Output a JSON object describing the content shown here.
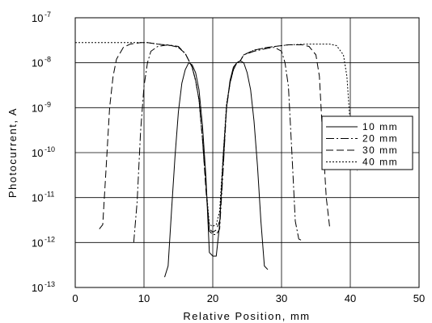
{
  "chart_data": {
    "type": "line",
    "title": "",
    "xlabel": "Relative Position, mm",
    "ylabel": "Photocurrent, A",
    "xlim": [
      0,
      50
    ],
    "ylim_log10": [
      -13,
      -7
    ],
    "y_scale": "log",
    "grid": true,
    "legend_position": "right",
    "x_ticks": [
      "0",
      "10",
      "20",
      "30",
      "40",
      "50"
    ],
    "y_ticks": [
      {
        "base": "10",
        "exp": "-7"
      },
      {
        "base": "10",
        "exp": "-8"
      },
      {
        "base": "10",
        "exp": "-9"
      },
      {
        "base": "10",
        "exp": "-10"
      },
      {
        "base": "10",
        "exp": "-11"
      },
      {
        "base": "10",
        "exp": "-12"
      },
      {
        "base": "10",
        "exp": "-13"
      }
    ],
    "series": [
      {
        "name": "10 mm",
        "dash": "none",
        "points": [
          [
            13.0,
            1.7e-13
          ],
          [
            13.5,
            3e-13
          ],
          [
            14.0,
            5e-12
          ],
          [
            14.5,
            8e-11
          ],
          [
            15.0,
            8e-10
          ],
          [
            15.5,
            3.5e-09
          ],
          [
            16.0,
            7e-09
          ],
          [
            16.5,
            1e-08
          ],
          [
            17.0,
            9e-09
          ],
          [
            17.5,
            6e-09
          ],
          [
            18.0,
            2.5e-09
          ],
          [
            18.5,
            4e-10
          ],
          [
            19.0,
            3e-11
          ],
          [
            19.5,
            6e-13
          ],
          [
            20.0,
            5e-13
          ],
          [
            20.5,
            5e-13
          ],
          [
            21.0,
            2.5e-12
          ],
          [
            21.5,
            8e-11
          ],
          [
            22.0,
            1e-09
          ],
          [
            22.5,
            4e-09
          ],
          [
            23.0,
            8e-09
          ],
          [
            23.5,
            1e-08
          ],
          [
            24.0,
            1.1e-08
          ],
          [
            24.5,
            1e-08
          ],
          [
            25.0,
            6e-09
          ],
          [
            25.5,
            2.5e-09
          ],
          [
            26.0,
            5e-10
          ],
          [
            26.5,
            5e-11
          ],
          [
            27.0,
            3e-12
          ],
          [
            27.5,
            3e-13
          ],
          [
            28.0,
            2.5e-13
          ]
        ]
      },
      {
        "name": "20 mm",
        "dash": "10 3 2 3",
        "points": [
          [
            8.5,
            1e-12
          ],
          [
            9.0,
            8e-12
          ],
          [
            9.5,
            3e-10
          ],
          [
            10.0,
            3e-09
          ],
          [
            10.5,
            1e-08
          ],
          [
            11.0,
            1.8e-08
          ],
          [
            12.0,
            2.3e-08
          ],
          [
            13.5,
            2.5e-08
          ],
          [
            15.0,
            2.3e-08
          ],
          [
            16.0,
            1.6e-08
          ],
          [
            17.0,
            8e-09
          ],
          [
            17.5,
            4e-09
          ],
          [
            18.0,
            1.5e-09
          ],
          [
            18.5,
            2e-10
          ],
          [
            19.0,
            2e-11
          ],
          [
            19.5,
            1.8e-12
          ],
          [
            20.0,
            1.5e-12
          ],
          [
            20.5,
            1.5e-12
          ],
          [
            21.0,
            2e-12
          ],
          [
            21.5,
            4e-11
          ],
          [
            22.0,
            1e-09
          ],
          [
            22.5,
            3.5e-09
          ],
          [
            23.0,
            7e-09
          ],
          [
            23.5,
            1e-08
          ],
          [
            24.0,
            1.1e-08
          ],
          [
            24.5,
            1.5e-08
          ],
          [
            26.0,
            1.8e-08
          ],
          [
            28.0,
            2.1e-08
          ],
          [
            29.0,
            2.2e-08
          ],
          [
            30.0,
            1.8e-08
          ],
          [
            30.5,
            1e-08
          ],
          [
            31.0,
            3e-09
          ],
          [
            31.5,
            1e-10
          ],
          [
            32.0,
            3e-12
          ],
          [
            32.5,
            1.2e-12
          ],
          [
            33.0,
            1.1e-12
          ]
        ]
      },
      {
        "name": "30 mm",
        "dash": "9 4",
        "points": [
          [
            3.5,
            2e-12
          ],
          [
            4.0,
            2.5e-12
          ],
          [
            4.5,
            5e-11
          ],
          [
            5.0,
            1e-09
          ],
          [
            5.5,
            5e-09
          ],
          [
            6.0,
            1.2e-08
          ],
          [
            7.0,
            2.2e-08
          ],
          [
            8.0,
            2.6e-08
          ],
          [
            9.5,
            2.8e-08
          ],
          [
            10.5,
            2.8e-08
          ],
          [
            12.0,
            2.6e-08
          ],
          [
            14.0,
            2.4e-08
          ],
          [
            15.0,
            2.2e-08
          ],
          [
            16.0,
            1.6e-08
          ],
          [
            17.0,
            8e-09
          ],
          [
            17.5,
            4e-09
          ],
          [
            18.0,
            1.5e-09
          ],
          [
            18.5,
            2e-10
          ],
          [
            19.0,
            1.5e-11
          ],
          [
            19.5,
            2e-12
          ],
          [
            20.0,
            1.7e-12
          ],
          [
            20.5,
            1.9e-12
          ],
          [
            21.0,
            3e-12
          ],
          [
            21.5,
            5e-11
          ],
          [
            22.0,
            1e-09
          ],
          [
            22.5,
            3.5e-09
          ],
          [
            23.0,
            7e-09
          ],
          [
            23.5,
            1e-08
          ],
          [
            24.0,
            1.1e-08
          ],
          [
            24.5,
            1.5e-08
          ],
          [
            26.0,
            1.9e-08
          ],
          [
            28.0,
            2.2e-08
          ],
          [
            31.0,
            2.5e-08
          ],
          [
            33.0,
            2.5e-08
          ],
          [
            34.0,
            2.3e-08
          ],
          [
            35.0,
            1.5e-08
          ],
          [
            35.5,
            5e-09
          ],
          [
            36.0,
            2e-10
          ],
          [
            36.5,
            1e-11
          ],
          [
            37.0,
            2.2e-12
          ]
        ]
      },
      {
        "name": "40 mm",
        "dash": "2 2",
        "points": [
          [
            0.0,
            2.8e-08
          ],
          [
            5.0,
            2.8e-08
          ],
          [
            9.0,
            2.8e-08
          ],
          [
            10.5,
            2.8e-08
          ],
          [
            12.0,
            2.6e-08
          ],
          [
            14.0,
            2.4e-08
          ],
          [
            15.0,
            2.2e-08
          ],
          [
            16.0,
            1.6e-08
          ],
          [
            17.0,
            8e-09
          ],
          [
            17.5,
            4e-09
          ],
          [
            18.0,
            1.5e-09
          ],
          [
            18.5,
            2e-10
          ],
          [
            19.0,
            2e-11
          ],
          [
            19.5,
            2.5e-12
          ],
          [
            20.0,
            2.3e-12
          ],
          [
            20.5,
            2.5e-12
          ],
          [
            21.0,
            5e-12
          ],
          [
            21.5,
            8e-11
          ],
          [
            22.0,
            1.2e-09
          ],
          [
            22.5,
            3.5e-09
          ],
          [
            23.0,
            7e-09
          ],
          [
            23.5,
            1e-08
          ],
          [
            24.0,
            1.1e-08
          ],
          [
            24.5,
            1.5e-08
          ],
          [
            26.0,
            1.9e-08
          ],
          [
            28.0,
            2.2e-08
          ],
          [
            31.0,
            2.5e-08
          ],
          [
            34.0,
            2.6e-08
          ],
          [
            37.0,
            2.6e-08
          ],
          [
            38.0,
            2.4e-08
          ],
          [
            39.0,
            1.5e-08
          ],
          [
            39.5,
            5e-09
          ],
          [
            40.0,
            4e-10
          ],
          [
            40.5,
            8e-11
          ],
          [
            41.0,
            4e-11
          ]
        ]
      }
    ]
  }
}
